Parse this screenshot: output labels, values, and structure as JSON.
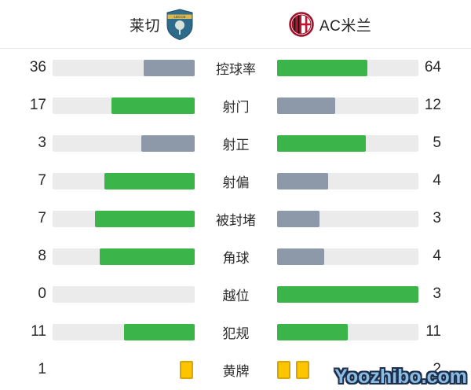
{
  "watermark": "Yoozhibo.com",
  "colors": {
    "win_bar": "#3bb54a",
    "lose_bar": "#8d99a8",
    "track": "#ebebeb",
    "yellow_card": "#fdc500",
    "yellow_card_border": "#d7a600",
    "watermark_fill": "#8cbcdf",
    "watermark_outline": "#1c2f4e"
  },
  "chart_data": {
    "type": "bar",
    "layout": "horizontal-mirrored-comparison",
    "categories": [
      "控球率",
      "射门",
      "射正",
      "射偏",
      "被封堵",
      "角球",
      "越位",
      "犯规",
      "黄牌"
    ],
    "series": [
      {
        "name": "莱切",
        "values": [
          36,
          17,
          3,
          7,
          7,
          8,
          0,
          11,
          1
        ]
      },
      {
        "name": "AC米兰",
        "values": [
          64,
          12,
          5,
          4,
          3,
          4,
          3,
          11,
          2
        ]
      }
    ],
    "row_display": [
      "bar",
      "bar",
      "bar",
      "bar",
      "bar",
      "bar",
      "bar",
      "bar",
      "cards"
    ],
    "bar_rules": {
      "width": "value / (home + away)",
      "color_win_or_tie": "green",
      "color_lose": "gray"
    },
    "legend_position": "top"
  }
}
